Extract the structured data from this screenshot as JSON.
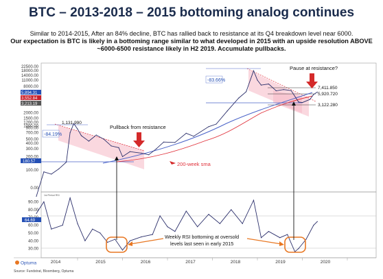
{
  "title": "BTC – 2013-2018 – 2015 bottoming analog continues",
  "subtitle_lines": [
    "Similar to 2014-2015, After an 84% decline, BTC has rallied back to resistance at its Q4 breakdown level near 6000.",
    "Our expectation is BTC is likely in a bottoming range similar to what developed in 2015 with an upside resolution ABOVE",
    "~6000-6500 resistance likely in H2 2019. Accumulate pullbacks."
  ],
  "source": "Source: Fundstrat, Bloomberg, Optuma",
  "logo": "Optuma",
  "colors": {
    "price": "#2b2f6b",
    "blue_line": "#4a63c8",
    "red_line": "#e0303a",
    "pink_zone": "#f5b8c4",
    "orange": "#e87722",
    "arrow_red": "#d42a2a",
    "tag_red": "#c8202a",
    "tag_blue": "#2550b5",
    "tag_grey": "#555555"
  },
  "annotations": {
    "pullback": "Pullback from resistance",
    "pause": "Pause at resistance?",
    "sma": "200-week sma",
    "rsi_note_1": "Weekly RSI bottoming at oversold",
    "rsi_note_2": "levels last seen in early 2015",
    "pct_left": "-84.19%",
    "pct_right": "-83.66%",
    "peak_left": "1,131.990",
    "low_left": "180.57"
  },
  "chart_data": [
    {
      "type": "line",
      "scale": "log",
      "series": [
        {
          "points": [
            [
              "2013-02",
              25
            ],
            [
              "2013-04",
              90
            ],
            [
              "2013-06",
              80
            ],
            [
              "2013-08",
              105
            ],
            [
              "2013-10",
              150
            ],
            [
              "2013-11",
              700
            ],
            [
              "2013-12",
              1131.99
            ],
            [
              "2014-01",
              850
            ],
            [
              "2014-02",
              600
            ],
            [
              "2014-04",
              450
            ],
            [
              "2014-06",
              620
            ],
            [
              "2014-08",
              500
            ],
            [
              "2014-10",
              350
            ],
            [
              "2014-12",
              320
            ],
            [
              "2015-01",
              200
            ],
            [
              "2015-03",
              260
            ],
            [
              "2015-06",
              240
            ],
            [
              "2015-08",
              220
            ],
            [
              "2015-10",
              300
            ],
            [
              "2015-12",
              430
            ],
            [
              "2016-03",
              420
            ],
            [
              "2016-06",
              680
            ],
            [
              "2016-08",
              580
            ],
            [
              "2016-12",
              960
            ],
            [
              "2017-02",
              1100
            ],
            [
              "2017-05",
              2200
            ],
            [
              "2017-08",
              4300
            ],
            [
              "2017-10",
              6000
            ],
            [
              "2017-12",
              18000
            ],
            [
              "2018-01",
              11000
            ],
            [
              "2018-02",
              8500
            ],
            [
              "2018-04",
              9000
            ],
            [
              "2018-06",
              6300
            ],
            [
              "2018-08",
              6700
            ],
            [
              "2018-10",
              6400
            ],
            [
              "2018-12",
              3500
            ],
            [
              "2019-01",
              3400
            ],
            [
              "2019-03",
              4000
            ],
            [
              "2019-04",
              5200
            ],
            [
              "2019-05",
              5894.31
            ]
          ]
        }
      ],
      "y_ticks": [
        "22500.00",
        "18000.00",
        "14000.00",
        "11000.00",
        "8000.00",
        "6000.00",
        "2000.00",
        "1500.00",
        "1200.00",
        "1000.00",
        "900.00",
        "700.00",
        "500.00",
        "400.00",
        "300.00",
        "200.00",
        "100.00",
        "0.00"
      ],
      "price_tags": [
        "5,894.31",
        "3,552.84",
        "3,213.19",
        "180.57"
      ],
      "right_labels": [
        "7,411.850",
        "5,920.720",
        "3,122.280"
      ]
    },
    {
      "type": "line",
      "name": "Weekly RSI",
      "ylim": [
        20,
        100
      ],
      "y_ticks": [
        "90.00",
        "80.00",
        "70.00",
        "60.00",
        "50.00",
        "40.00",
        "30.00"
      ],
      "last_tag": "64.69",
      "series": [
        {
          "points": [
            [
              "2013-02",
              75
            ],
            [
              "2013-04",
              90
            ],
            [
              "2013-06",
              55
            ],
            [
              "2013-09",
              60
            ],
            [
              "2013-11",
              95
            ],
            [
              "2014-01",
              62
            ],
            [
              "2014-03",
              40
            ],
            [
              "2014-05",
              55
            ],
            [
              "2014-07",
              50
            ],
            [
              "2014-09",
              38
            ],
            [
              "2014-11",
              42
            ],
            [
              "2015-01",
              28
            ],
            [
              "2015-03",
              40
            ],
            [
              "2015-06",
              45
            ],
            [
              "2015-09",
              48
            ],
            [
              "2015-11",
              72
            ],
            [
              "2016-01",
              58
            ],
            [
              "2016-03",
              52
            ],
            [
              "2016-06",
              78
            ],
            [
              "2016-09",
              58
            ],
            [
              "2016-12",
              74
            ],
            [
              "2017-03",
              62
            ],
            [
              "2017-06",
              80
            ],
            [
              "2017-09",
              62
            ],
            [
              "2017-12",
              92
            ],
            [
              "2018-02",
              44
            ],
            [
              "2018-04",
              52
            ],
            [
              "2018-07",
              44
            ],
            [
              "2018-09",
              48
            ],
            [
              "2018-11",
              26
            ],
            [
              "2018-12",
              30
            ],
            [
              "2019-02",
              42
            ],
            [
              "2019-04",
              60
            ],
            [
              "2019-05",
              64.69
            ]
          ]
        }
      ]
    }
  ],
  "x_ticks": [
    "2014",
    "2015",
    "2016",
    "2017",
    "2018",
    "2019",
    "2020"
  ]
}
